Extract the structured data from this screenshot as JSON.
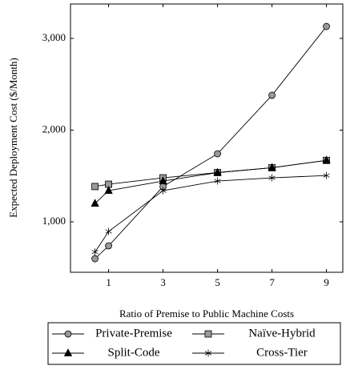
{
  "chart_data": {
    "type": "line",
    "xlabel": "Ratio of Premise to Public Machine Costs",
    "ylabel": "Expected Deployment Cost ($/Month)",
    "x": [
      0.5,
      1,
      3,
      5,
      7,
      9
    ],
    "xlim": [
      -0.4,
      9.6
    ],
    "xticks": [
      1,
      3,
      5,
      7,
      9
    ],
    "ylim": [
      450,
      3375
    ],
    "yticks": [
      {
        "value": 1000,
        "label": "1,000"
      },
      {
        "value": 2000,
        "label": "2,000"
      },
      {
        "value": 3000,
        "label": "3,000"
      }
    ],
    "series": [
      {
        "name": "Private-Premise",
        "color": "#000000",
        "marker": "circle",
        "values": [
          598,
          738,
          1385,
          1742,
          2380,
          3130
        ]
      },
      {
        "name": "Naïve-Hybrid",
        "color": "#000000",
        "marker": "square",
        "values": [
          1385,
          1410,
          1480,
          1537,
          1590,
          1670
        ]
      },
      {
        "name": "Split-Code",
        "color": "#000000",
        "marker": "triangle",
        "values": [
          1200,
          1340,
          1445,
          1537,
          1590,
          1670
        ]
      },
      {
        "name": "Cross-Tier",
        "color": "#000000",
        "marker": "star",
        "values": [
          670,
          895,
          1340,
          1445,
          1480,
          1505
        ]
      }
    ]
  }
}
